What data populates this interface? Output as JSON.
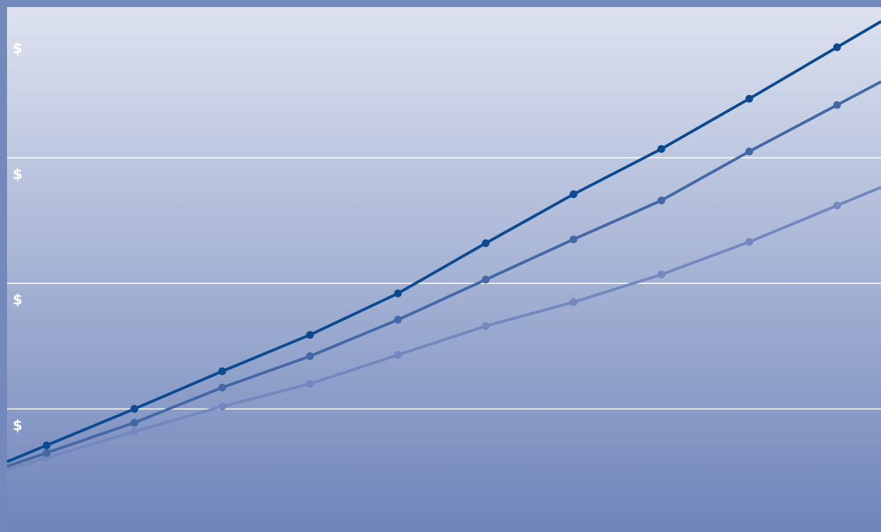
{
  "chart_data": {
    "type": "line",
    "title": "",
    "xlabel": "",
    "ylabel": "",
    "x": [
      0,
      1,
      2,
      3,
      4,
      5,
      6,
      7,
      8,
      9
    ],
    "xlim": [
      -0.45,
      9.5
    ],
    "ylim": [
      -0.98,
      3.2
    ],
    "y_ticks": [
      {
        "value": 0,
        "label": "$"
      },
      {
        "value": 1,
        "label": "$"
      },
      {
        "value": 2,
        "label": "$"
      },
      {
        "value": 3,
        "label": "$"
      }
    ],
    "grid": true,
    "series": [
      {
        "color": "#0c4a8f",
        "values": [
          -0.29,
          0.0,
          0.3,
          0.59,
          0.92,
          1.32,
          1.71,
          2.07,
          2.47,
          2.88
        ]
      },
      {
        "color": "#4467a6",
        "values": [
          -0.35,
          -0.11,
          0.17,
          0.42,
          0.71,
          1.03,
          1.35,
          1.66,
          2.05,
          2.42
        ]
      },
      {
        "color": "#7288bf",
        "values": [
          -0.39,
          -0.18,
          0.02,
          0.2,
          0.43,
          0.66,
          0.85,
          1.07,
          1.33,
          1.62
        ]
      }
    ],
    "colors": {
      "background_top": "#dde2ef",
      "background_bottom": "#6f85ba",
      "border": "#7388bb",
      "grid": "#ffffff",
      "tick_label": "#ffffff"
    }
  }
}
